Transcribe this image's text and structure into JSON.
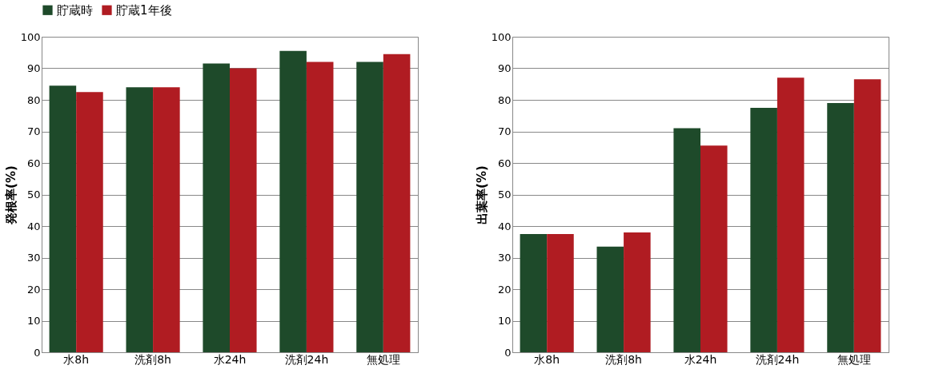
{
  "chart_data": [
    {
      "type": "bar",
      "ylabel": "発根率(%)",
      "categories": [
        "水8h",
        "洗剤8h",
        "水24h",
        "洗剤24h",
        "無処理"
      ],
      "series": [
        {
          "name": "貯蔵時",
          "color": "#1e4a2a",
          "values": [
            84.5,
            84,
            91.5,
            95.5,
            92
          ]
        },
        {
          "name": "貯蔵1年後",
          "color": "#b01c22",
          "values": [
            82.5,
            84,
            90,
            92,
            94.5
          ]
        }
      ],
      "ylim": [
        0,
        100
      ],
      "yticks": [
        0,
        10,
        20,
        30,
        40,
        50,
        60,
        70,
        80,
        90,
        100
      ],
      "grid": "y",
      "legend": "top left"
    },
    {
      "type": "bar",
      "ylabel": "出葉率(%)",
      "categories": [
        "水8h",
        "洗剤8h",
        "水24h",
        "洗剤24h",
        "無処理"
      ],
      "series": [
        {
          "name": "貯蔵時",
          "color": "#1e4a2a",
          "values": [
            37.5,
            33.5,
            71,
            77.5,
            79
          ]
        },
        {
          "name": "貯蔵1年後",
          "color": "#b01c22",
          "values": [
            37.5,
            38,
            65.5,
            87,
            86.5
          ]
        }
      ],
      "ylim": [
        0,
        100
      ],
      "yticks": [
        0,
        10,
        20,
        30,
        40,
        50,
        60,
        70,
        80,
        90,
        100
      ],
      "grid": "y",
      "legend": "top left"
    }
  ]
}
